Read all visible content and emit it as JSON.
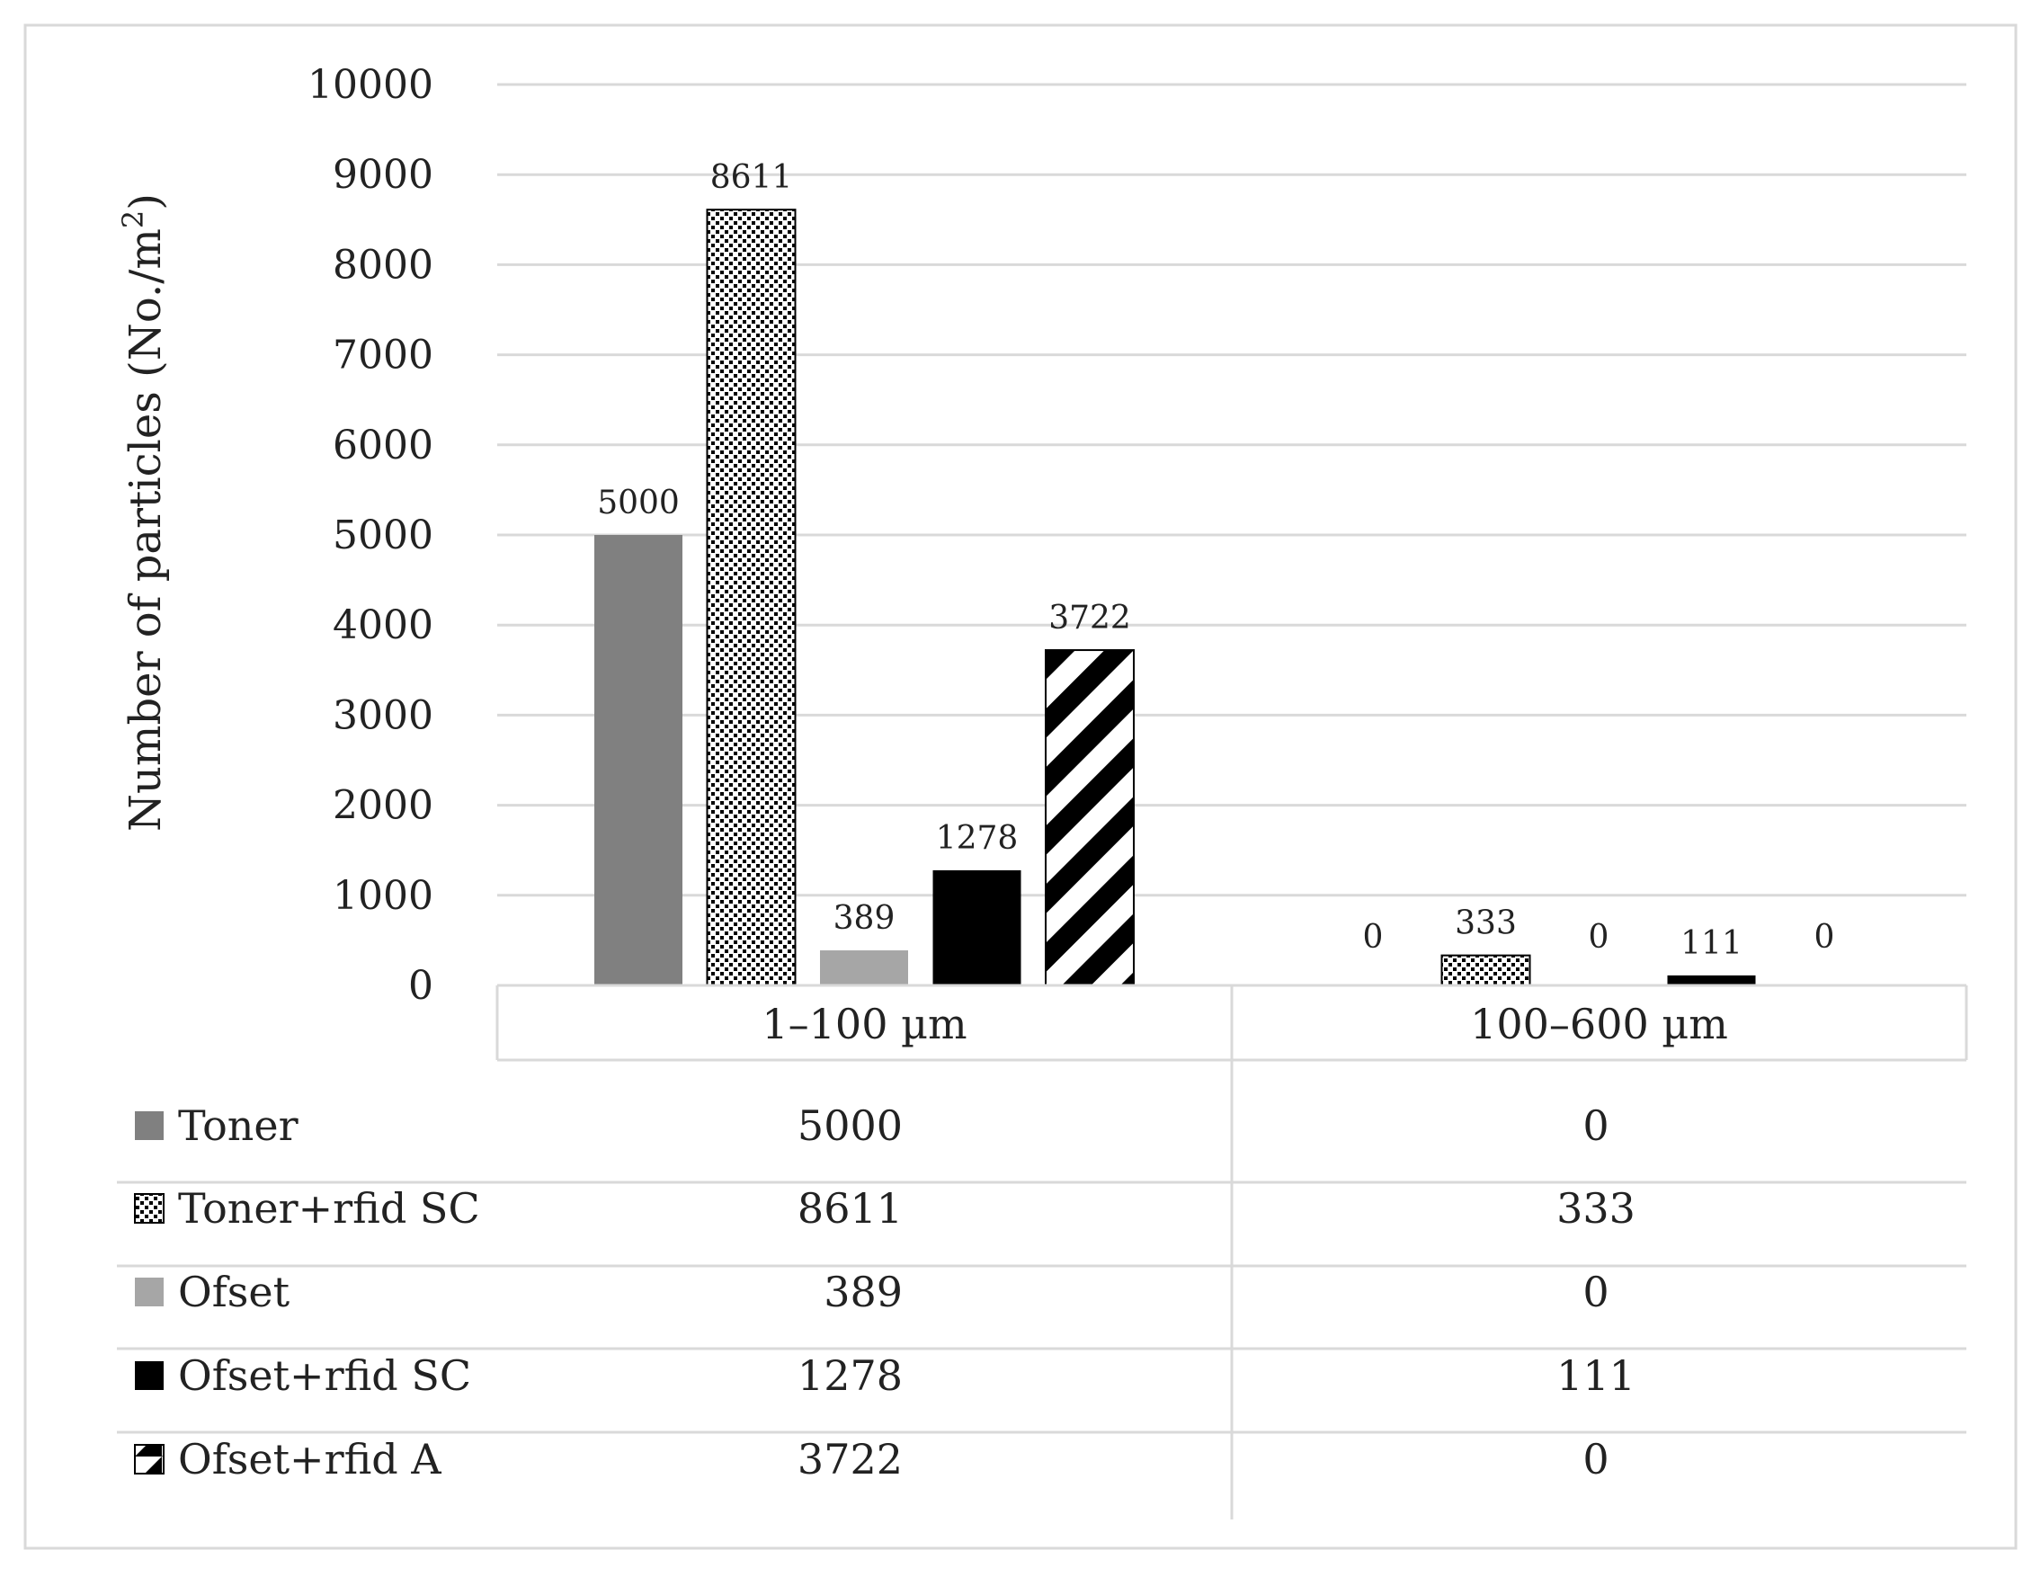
{
  "chart_data": {
    "type": "bar",
    "ylabel": "Number of particles (No./m",
    "ylabel_sup": "2",
    "ylabel_close": ")",
    "ylim": [
      0,
      10000
    ],
    "yticks": [
      0,
      1000,
      2000,
      3000,
      4000,
      5000,
      6000,
      7000,
      8000,
      9000,
      10000
    ],
    "grid": true,
    "categories": [
      "1–100 µm",
      "100–600 µm"
    ],
    "series": [
      {
        "name": "Toner",
        "values": [
          5000,
          0
        ],
        "color": "#808080",
        "pattern": "solid"
      },
      {
        "name": "Toner+rfid SC",
        "values": [
          8611,
          333
        ],
        "color": "#000000",
        "pattern": "dots"
      },
      {
        "name": "Ofset",
        "values": [
          389,
          0
        ],
        "color": "#a6a6a6",
        "pattern": "solid"
      },
      {
        "name": "Ofset+rfid SC",
        "values": [
          1278,
          111
        ],
        "color": "#000000",
        "pattern": "solid"
      },
      {
        "name": "Ofset+rfid A",
        "values": [
          3722,
          0
        ],
        "color": "#000000",
        "pattern": "diagonal"
      }
    ],
    "table": {
      "rows": [
        [
          "5000",
          "0"
        ],
        [
          "8611",
          "333"
        ],
        [
          "389",
          "0"
        ],
        [
          "1278",
          "111"
        ],
        [
          "3722",
          "0"
        ]
      ]
    }
  }
}
